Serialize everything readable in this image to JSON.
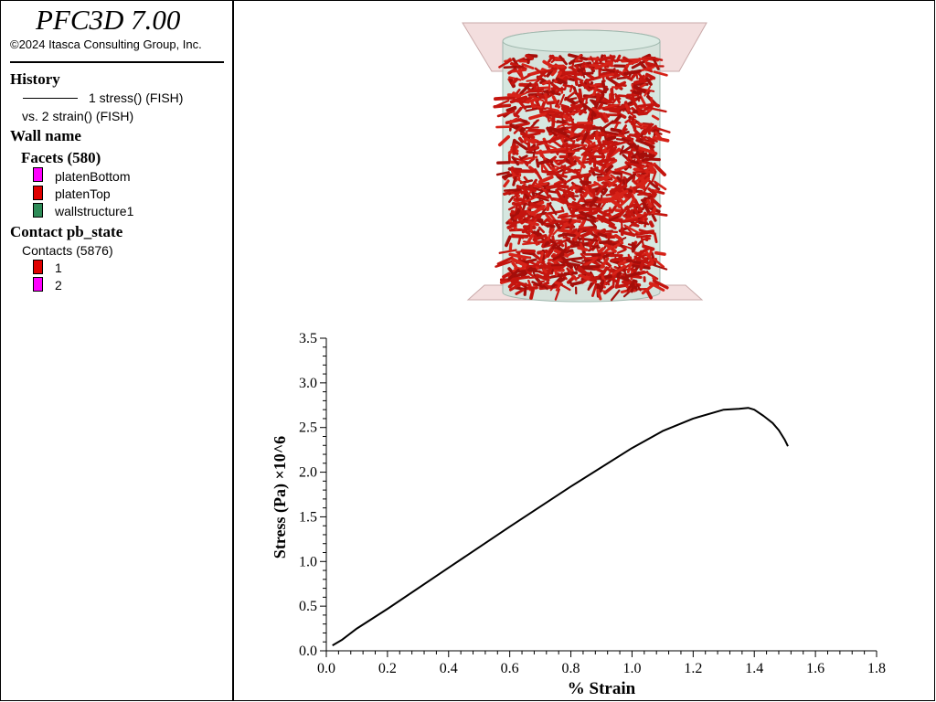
{
  "header": {
    "title": "PFC3D 7.00",
    "copyright": "©2024 Itasca Consulting Group, Inc."
  },
  "legend": {
    "history": {
      "heading": "History",
      "line1": "1 stress() (FISH)",
      "line2": "vs. 2 strain() (FISH)"
    },
    "wall": {
      "heading": "Wall name",
      "facets_heading": "Facets (580)",
      "items": [
        {
          "label": "platenBottom",
          "color": "#ff00ff"
        },
        {
          "label": "platenTop",
          "color": "#e00000"
        },
        {
          "label": "wallstructure1",
          "color": "#2e8b57"
        }
      ]
    },
    "contact": {
      "heading": "Contact pb_state",
      "sub": "Contacts (5876)",
      "items": [
        {
          "label": "1",
          "color": "#e00000"
        },
        {
          "label": "2",
          "color": "#ff00ff"
        }
      ]
    }
  },
  "chart_data": {
    "type": "line",
    "xlabel": "% Strain",
    "ylabel": "Stress (Pa) ×10^6",
    "xlim": [
      0,
      1.8
    ],
    "ylim": [
      0,
      3.5
    ],
    "xticks": [
      "0.0",
      "0.2",
      "0.4",
      "0.6",
      "0.8",
      "1.0",
      "1.2",
      "1.4",
      "1.6",
      "1.8"
    ],
    "yticks": [
      "0.0",
      "0.5",
      "1.0",
      "1.5",
      "2.0",
      "2.5",
      "3.0",
      "3.5"
    ],
    "series": [
      {
        "color": "#000000",
        "x": [
          0.02,
          0.05,
          0.1,
          0.2,
          0.4,
          0.6,
          0.8,
          1.0,
          1.1,
          1.2,
          1.3,
          1.35,
          1.38,
          1.4,
          1.43,
          1.46,
          1.48,
          1.5,
          1.51
        ],
        "y": [
          0.06,
          0.12,
          0.25,
          0.47,
          0.93,
          1.39,
          1.84,
          2.27,
          2.46,
          2.6,
          2.7,
          2.71,
          2.72,
          2.7,
          2.63,
          2.55,
          2.47,
          2.36,
          2.29
        ]
      }
    ]
  }
}
